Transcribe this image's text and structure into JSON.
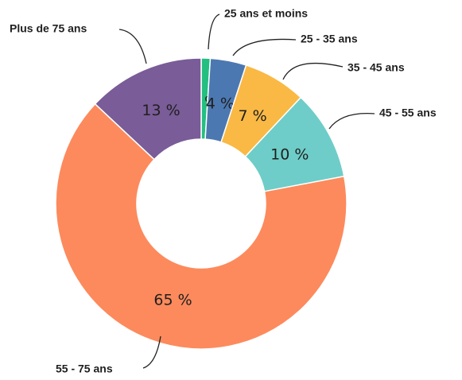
{
  "chart_data": {
    "type": "donut",
    "categories": [
      "25 ans et moins",
      "25 - 35 ans",
      "35 - 45 ans",
      "45 - 55 ans",
      "55 - 75 ans",
      "Plus de 75 ans"
    ],
    "values": [
      1,
      4,
      7,
      10,
      65,
      13
    ],
    "value_labels": [
      "1 %",
      "4 %",
      "7 %",
      "10 %",
      "65 %",
      "13 %"
    ],
    "colors": [
      "#23bf80",
      "#4c78b1",
      "#f9b944",
      "#6ecdc8",
      "#fd8a5c",
      "#7a5c98"
    ]
  }
}
